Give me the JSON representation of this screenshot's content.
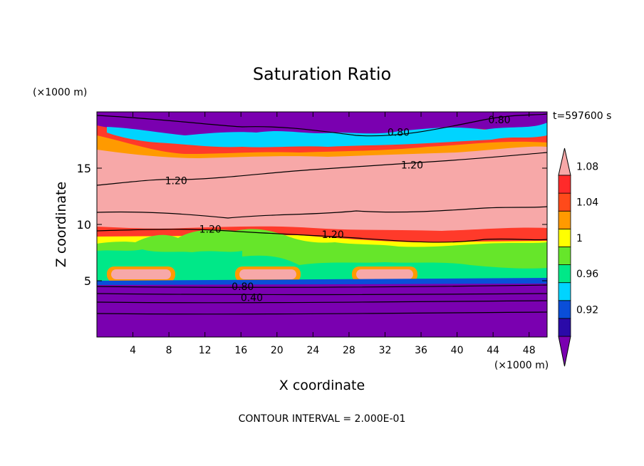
{
  "chart_data": {
    "type": "heatmap",
    "title": "Saturation Ratio",
    "xlabel": "X coordinate",
    "ylabel": "Z coordinate",
    "x_unit": "(×1000 m)",
    "y_unit": "(×1000 m)",
    "time_label": "t=597600 s",
    "footer": "CONTOUR INTERVAL = 2.000E-01",
    "xlim": [
      0,
      50
    ],
    "ylim": [
      0,
      20
    ],
    "x_ticks": [
      4,
      8,
      12,
      16,
      20,
      24,
      28,
      32,
      36,
      40,
      44,
      48
    ],
    "y_ticks": [
      5,
      10,
      15
    ],
    "colorbar": {
      "levels": [
        0.92,
        0.96,
        1,
        1.04,
        1.08
      ],
      "labels": [
        "0.92",
        "0.96",
        "1",
        "1.04",
        "1.08"
      ],
      "colors": [
        "#7a00b0",
        "#2a0aa8",
        "#0a4ed8",
        "#00d4ff",
        "#00e888",
        "#66e62a",
        "#ffff00",
        "#ff9a00",
        "#ff4a1a",
        "#ff2a2a",
        "#f7a8a8"
      ]
    },
    "contour_labels": [
      {
        "text": "0.80",
        "x": 33.5,
        "y": 18.2
      },
      {
        "text": "0.80",
        "x": 44.7,
        "y": 19.3
      },
      {
        "text": "1.20",
        "x": 8.8,
        "y": 13.9
      },
      {
        "text": "1.20",
        "x": 35,
        "y": 15.3
      },
      {
        "text": "1.20",
        "x": 12.6,
        "y": 9.6
      },
      {
        "text": "1.20",
        "x": 26.2,
        "y": 9.1
      },
      {
        "text": "0.80",
        "x": 16.2,
        "y": 4.5
      },
      {
        "text": "0.40",
        "x": 17.2,
        "y": 3.5
      }
    ],
    "grid": false,
    "legend": "right colorbar"
  }
}
